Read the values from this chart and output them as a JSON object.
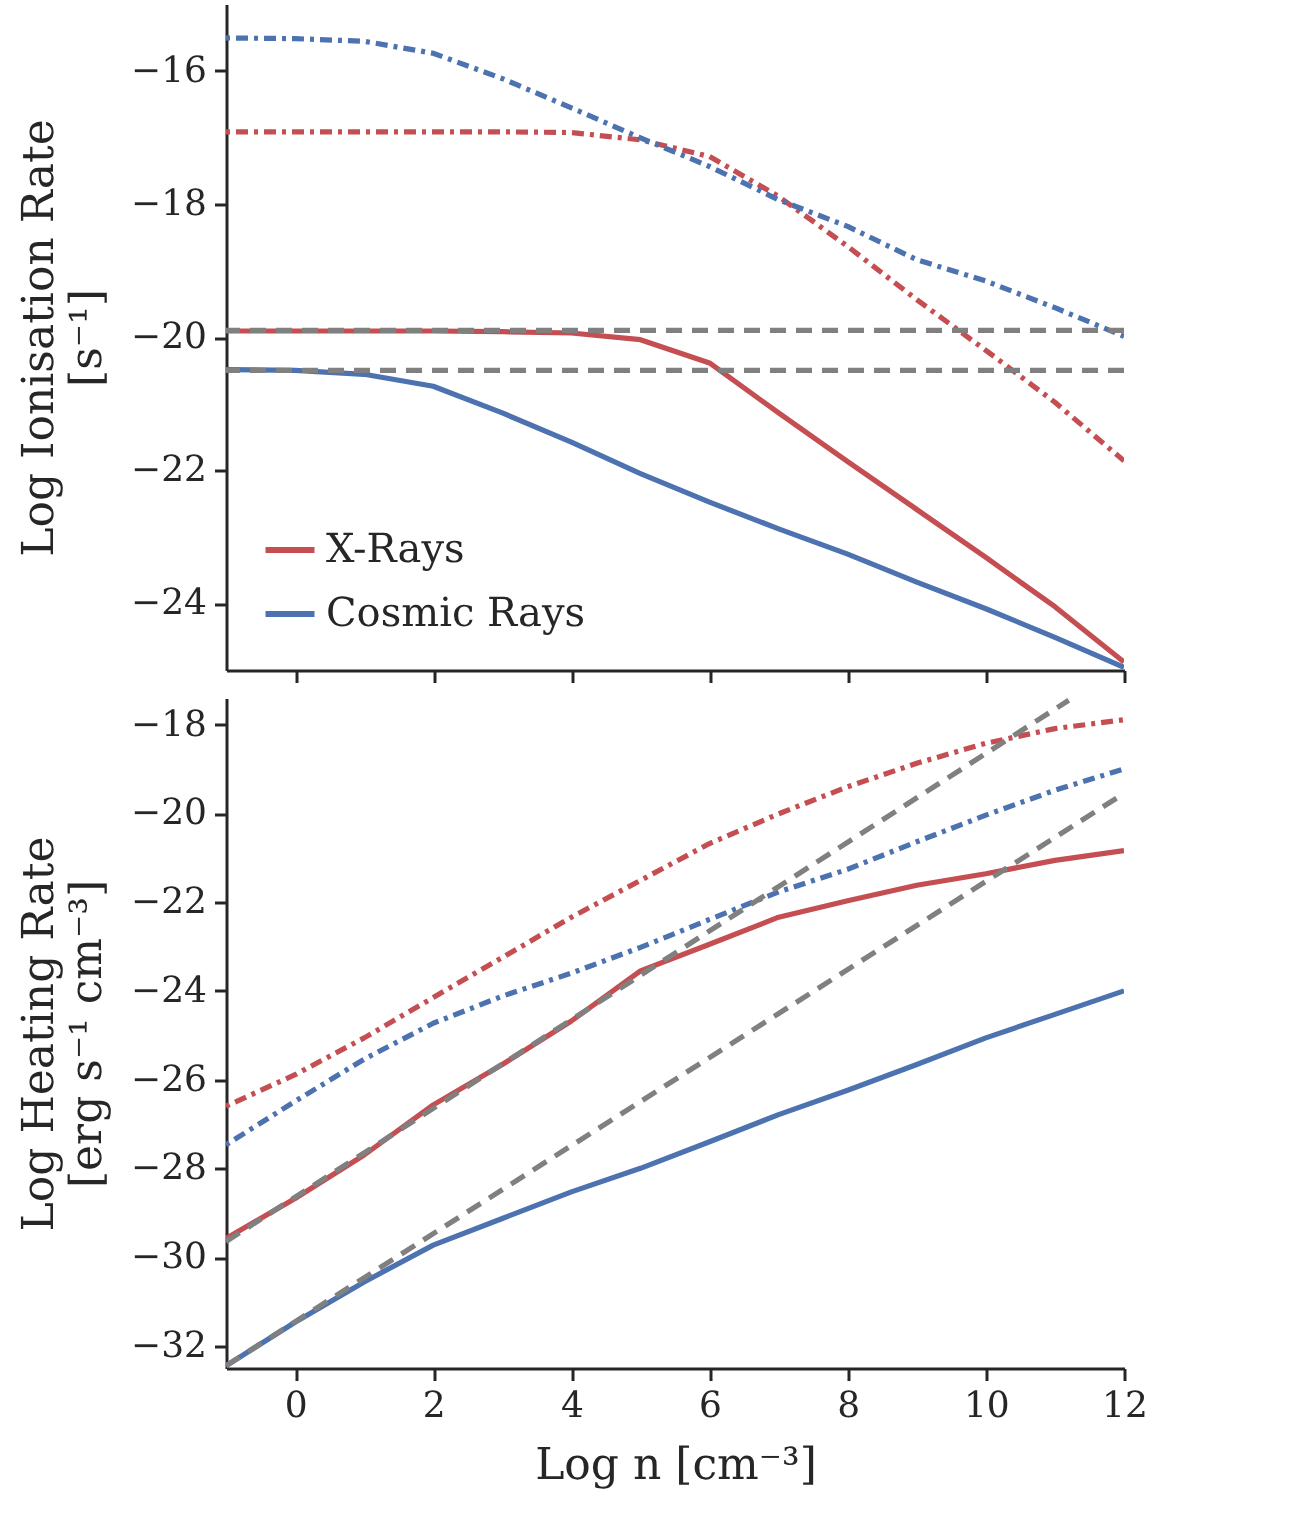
{
  "chart_data": [
    {
      "type": "line",
      "ylabel": "Log Ionisation Rate\n[s⁻¹]",
      "x": [
        -1,
        0,
        1,
        2,
        3,
        4,
        5,
        6,
        7,
        8,
        9,
        10,
        11,
        12
      ],
      "xlim": [
        -1,
        12
      ],
      "xticks": [
        0,
        2,
        4,
        6,
        8,
        10,
        12
      ],
      "ylim": [
        -25,
        -15
      ],
      "yticks": [
        -24,
        -22,
        -20,
        -18,
        -16
      ],
      "tick_labels": "y",
      "legend": "bottom left",
      "series": [
        {
          "name": "X-Rays",
          "color": "#c44e52",
          "line_style": "solid",
          "values": [
            -19.91,
            -19.91,
            -19.91,
            -19.91,
            -19.92,
            -19.94,
            -20.04,
            -20.39,
            -21.14,
            -21.87,
            -22.59,
            -23.31,
            -24.05,
            -24.88
          ]
        },
        {
          "name": "Cosmic Rays",
          "color": "#4c72b0",
          "line_style": "solid",
          "values": [
            -20.49,
            -20.5,
            -20.56,
            -20.74,
            -21.14,
            -21.58,
            -22.05,
            -22.48,
            -22.88,
            -23.26,
            -23.68,
            -24.08,
            -24.51,
            -24.96
          ]
        },
        {
          "color": "#c44e52",
          "line_style": "dotted",
          "values": [
            -16.92,
            -16.92,
            -16.92,
            -16.92,
            -16.92,
            -16.93,
            -17.04,
            -17.29,
            -17.89,
            -18.64,
            -19.44,
            -20.2,
            -20.98,
            -21.86
          ]
        },
        {
          "color": "#4c72b0",
          "line_style": "dotted",
          "values": [
            -15.51,
            -15.52,
            -15.56,
            -15.74,
            -16.12,
            -16.56,
            -17.01,
            -17.44,
            -17.94,
            -18.34,
            -18.84,
            -19.16,
            -19.56,
            -19.99
          ]
        }
      ],
      "ref_lines": [
        {
          "axis": "y",
          "value": -19.9,
          "color": "#808080",
          "line_style": "dashed"
        },
        {
          "axis": "y",
          "value": -20.5,
          "color": "#808080",
          "line_style": "dashed"
        }
      ]
    },
    {
      "type": "line",
      "xlabel": "Log n [cm⁻³]",
      "ylabel": "Log Heating Rate\n[erg s⁻¹ cm⁻³]",
      "x": [
        -1,
        0,
        1,
        2,
        3,
        4,
        5,
        6,
        7,
        8,
        9,
        10,
        11,
        12
      ],
      "xlim": [
        -1,
        12
      ],
      "xticks": [
        0,
        2,
        4,
        6,
        8,
        10,
        12
      ],
      "ylim": [
        -32.5,
        -17.4
      ],
      "yticks": [
        -32,
        -30,
        -28,
        -26,
        -24,
        -22,
        -20,
        -18
      ],
      "series": [
        {
          "color": "#c44e52",
          "line_style": "solid",
          "values": [
            -29.58,
            -28.68,
            -27.7,
            -26.57,
            -25.66,
            -24.68,
            -23.55,
            -22.95,
            -22.34,
            -21.97,
            -21.62,
            -21.36,
            -21.06,
            -20.84
          ]
        },
        {
          "color": "#4c72b0",
          "line_style": "solid",
          "values": [
            -32.45,
            -31.47,
            -30.56,
            -29.73,
            -29.13,
            -28.53,
            -28.0,
            -27.4,
            -26.79,
            -26.24,
            -25.66,
            -25.06,
            -24.53,
            -24.0
          ]
        },
        {
          "color": "#c44e52",
          "line_style": "dotted",
          "values": [
            -26.6,
            -25.89,
            -25.06,
            -24.15,
            -23.25,
            -22.34,
            -21.51,
            -20.68,
            -20.01,
            -19.4,
            -18.87,
            -18.42,
            -18.09,
            -17.89
          ]
        },
        {
          "color": "#4c72b0",
          "line_style": "dotted",
          "values": [
            -27.47,
            -26.49,
            -25.54,
            -24.73,
            -24.12,
            -23.6,
            -23.02,
            -22.39,
            -21.77,
            -21.26,
            -20.64,
            -20.04,
            -19.48,
            -19.0
          ]
        },
        {
          "color": "#808080",
          "line_style": "dashed",
          "x": [
            -1,
            11.2
          ],
          "values": [
            -29.65,
            -17.45
          ]
        },
        {
          "color": "#808080",
          "line_style": "dashed",
          "x": [
            -1,
            12
          ],
          "values": [
            -32.45,
            -19.55
          ]
        }
      ]
    }
  ]
}
